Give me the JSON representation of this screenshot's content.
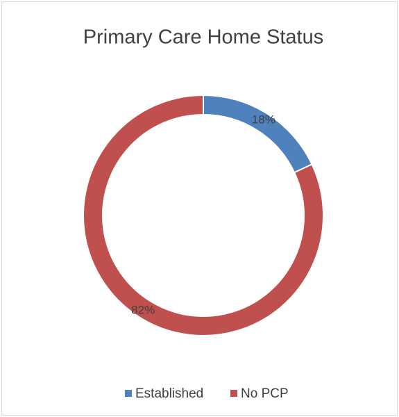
{
  "chart_data": {
    "type": "pie",
    "title": "Primary Care Home Status",
    "categories": [
      "Established",
      "No PCP"
    ],
    "values": [
      18,
      82
    ],
    "value_labels": [
      "18%",
      "82%"
    ],
    "colors": [
      "#4f81bd",
      "#c0504d"
    ],
    "legend": "bottom"
  }
}
